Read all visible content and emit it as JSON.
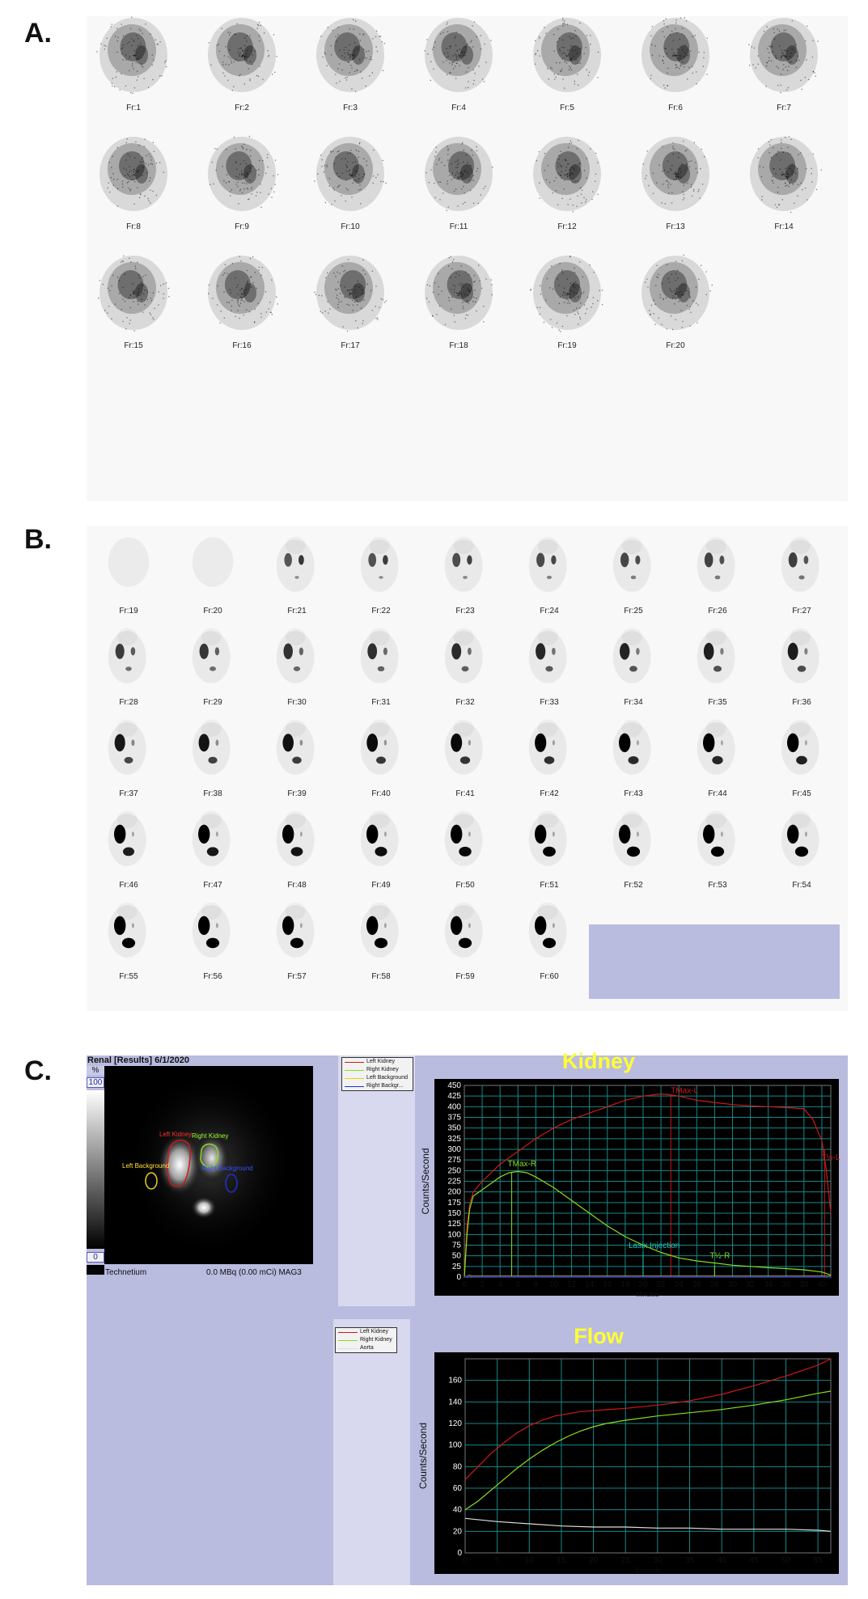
{
  "panels": {
    "a": "A.",
    "b": "B.",
    "c": "C."
  },
  "panel_a": {
    "frames": [
      "Fr:1",
      "Fr:2",
      "Fr:3",
      "Fr:4",
      "Fr:5",
      "Fr:6",
      "Fr:7",
      "Fr:8",
      "Fr:9",
      "Fr:10",
      "Fr:11",
      "Fr:12",
      "Fr:13",
      "Fr:14",
      "Fr:15",
      "Fr:16",
      "Fr:17",
      "Fr:18",
      "Fr:19",
      "Fr:20"
    ]
  },
  "panel_b": {
    "frames": [
      "Fr:19",
      "Fr:20",
      "Fr:21",
      "Fr:22",
      "Fr:23",
      "Fr:24",
      "Fr:25",
      "Fr:26",
      "Fr:27",
      "Fr:28",
      "Fr:29",
      "Fr:30",
      "Fr:31",
      "Fr:32",
      "Fr:33",
      "Fr:34",
      "Fr:35",
      "Fr:36",
      "Fr:37",
      "Fr:38",
      "Fr:39",
      "Fr:40",
      "Fr:41",
      "Fr:42",
      "Fr:43",
      "Fr:44",
      "Fr:45",
      "Fr:46",
      "Fr:47",
      "Fr:48",
      "Fr:49",
      "Fr:50",
      "Fr:51",
      "Fr:52",
      "Fr:53",
      "Fr:54",
      "Fr:55",
      "Fr:56",
      "Fr:57",
      "Fr:58",
      "Fr:59",
      "Fr:60"
    ]
  },
  "panel_c": {
    "header": "Renal [Results] 6/1/2020",
    "scale_unit": "%",
    "scale_max": "100",
    "scale_min": "0",
    "isotope": "99m Technetium",
    "dose": "0.0 MBq (0.00 mCi) MAG3",
    "roi_labels": {
      "left_kidney": "Left Kidney",
      "right_kidney": "Right Kidney",
      "left_background": "Left Background",
      "right_background": "Right Background"
    },
    "kidney_legend": [
      "Left Kidney",
      "Right Kidney",
      "Left Background",
      "Right Backgr..."
    ],
    "flow_legend": [
      "Left Kidney",
      "Right Kidney",
      "Aorta"
    ],
    "colors": {
      "left": "#d01818",
      "right": "#8cdc1c",
      "left_bg": "#e8d020",
      "right_bg": "#2030d0",
      "aorta": "#dddddd",
      "grid": "#138a8a",
      "lasix": "#20c8c8"
    }
  },
  "chart_data": [
    {
      "type": "line",
      "title": "Kidney",
      "xlabel": "Minutes",
      "ylabel": "Counts/Second",
      "xlim": [
        0,
        41
      ],
      "ylim": [
        0,
        450
      ],
      "xticks": [
        0,
        2,
        4,
        6,
        8,
        10,
        12,
        14,
        16,
        18,
        20,
        22,
        24,
        26,
        28,
        30,
        32,
        34,
        36,
        38,
        40
      ],
      "yticks": [
        0,
        25,
        50,
        75,
        100,
        125,
        150,
        175,
        200,
        225,
        250,
        275,
        300,
        325,
        350,
        375,
        400,
        425,
        450
      ],
      "series": [
        {
          "name": "Left Kidney",
          "x": [
            0,
            0.3,
            0.6,
            1,
            2,
            4,
            6,
            8,
            10,
            12,
            14,
            16,
            18,
            20,
            22,
            23,
            24,
            26,
            28,
            30,
            32,
            34,
            36,
            38,
            39,
            40,
            40.5,
            41
          ],
          "values": [
            0,
            120,
            170,
            200,
            225,
            265,
            295,
            325,
            350,
            370,
            385,
            400,
            415,
            425,
            430,
            428,
            425,
            415,
            410,
            405,
            402,
            400,
            398,
            395,
            370,
            320,
            250,
            150
          ]
        },
        {
          "name": "Right Kidney",
          "x": [
            0,
            0.3,
            0.6,
            1,
            2,
            3,
            4,
            5,
            6,
            7,
            8,
            10,
            12,
            14,
            16,
            18,
            20,
            22,
            24,
            26,
            28,
            30,
            32,
            34,
            36,
            38,
            40,
            41
          ],
          "values": [
            0,
            100,
            160,
            190,
            205,
            220,
            235,
            245,
            248,
            245,
            235,
            210,
            180,
            150,
            120,
            95,
            75,
            58,
            45,
            38,
            33,
            28,
            25,
            22,
            20,
            17,
            12,
            5
          ]
        },
        {
          "name": "Left Background",
          "x": [
            0,
            0.5,
            1,
            41
          ],
          "values": [
            0,
            4,
            2,
            2
          ]
        },
        {
          "name": "Right Background",
          "x": [
            0,
            0.5,
            1,
            41
          ],
          "values": [
            0,
            3,
            1,
            1
          ]
        }
      ],
      "markers": [
        {
          "label": "TMax-L",
          "x": 23.1
        },
        {
          "label": "TMax-R",
          "x": 5.3
        },
        {
          "label": "Lasix Injection",
          "x": 20
        },
        {
          "label": "T½-R",
          "x": 28
        },
        {
          "label": "T½-L",
          "x": 40.3
        }
      ]
    },
    {
      "type": "line",
      "title": "Flow",
      "xlabel": "Seconds",
      "ylabel": "Counts/Second",
      "xlim": [
        0,
        57
      ],
      "ylim": [
        0,
        180
      ],
      "xticks": [
        0,
        5,
        10,
        15,
        20,
        25,
        30,
        35,
        40,
        45,
        50,
        55
      ],
      "yticks": [
        0,
        20,
        40,
        60,
        80,
        100,
        120,
        140,
        160
      ],
      "series": [
        {
          "name": "Left Kidney",
          "x": [
            0,
            2,
            4,
            6,
            8,
            10,
            12,
            14,
            16,
            18,
            20,
            25,
            30,
            35,
            40,
            45,
            50,
            55,
            57
          ],
          "values": [
            68,
            80,
            92,
            102,
            111,
            118,
            123,
            127,
            129,
            131,
            132,
            134,
            137,
            141,
            147,
            155,
            164,
            174,
            180
          ]
        },
        {
          "name": "Right Kidney",
          "x": [
            0,
            2,
            4,
            6,
            8,
            10,
            12,
            14,
            16,
            18,
            20,
            22,
            25,
            30,
            35,
            40,
            45,
            50,
            55,
            57
          ],
          "values": [
            40,
            48,
            58,
            68,
            78,
            87,
            95,
            102,
            108,
            113,
            117,
            120,
            123,
            127,
            130,
            133,
            137,
            142,
            148,
            150
          ]
        },
        {
          "name": "Aorta",
          "x": [
            0,
            5,
            10,
            15,
            20,
            25,
            30,
            35,
            40,
            45,
            50,
            55,
            57
          ],
          "values": [
            32,
            29,
            27,
            25,
            24,
            24,
            23,
            23,
            22,
            22,
            22,
            21,
            20
          ]
        }
      ]
    }
  ]
}
